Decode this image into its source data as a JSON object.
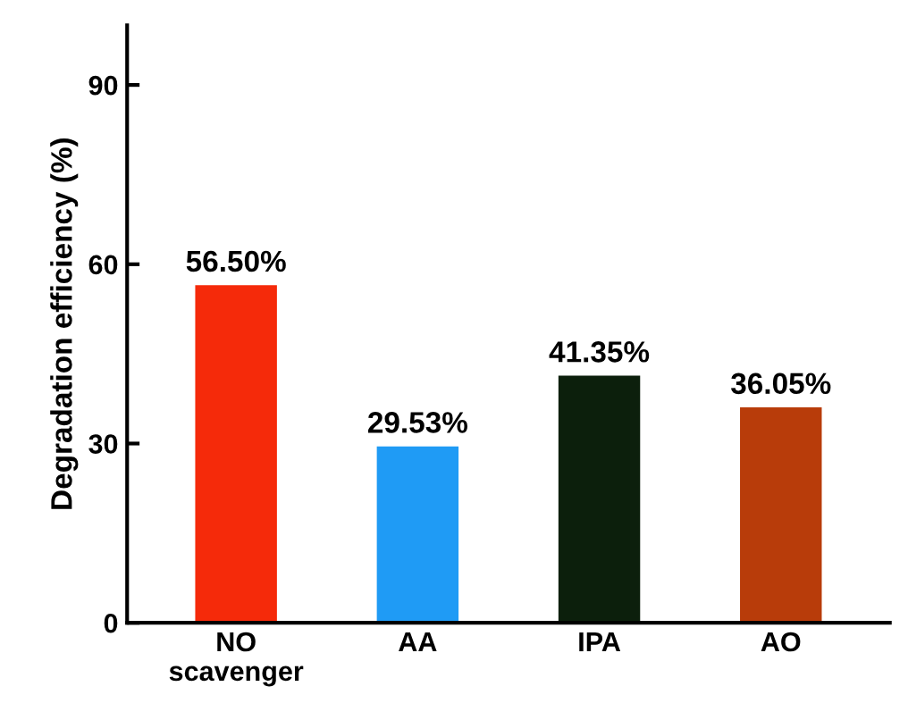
{
  "chart_data": {
    "type": "bar",
    "ylabel": "Degradation efficiency (%)",
    "categories": [
      "NO\nscavenger",
      "AA",
      "IPA",
      "AO"
    ],
    "values": [
      56.5,
      29.53,
      41.35,
      36.05
    ],
    "colors": [
      "#f52a0a",
      "#1f9bf5",
      "#0c1f0c",
      "#b83c0a"
    ],
    "value_labels": [
      "56.50%",
      "29.53%",
      "41.35%",
      "36.05%"
    ],
    "ylim": [
      0,
      100
    ],
    "yticks": [
      0,
      30,
      60,
      90
    ],
    "grid": false,
    "legend": false
  }
}
